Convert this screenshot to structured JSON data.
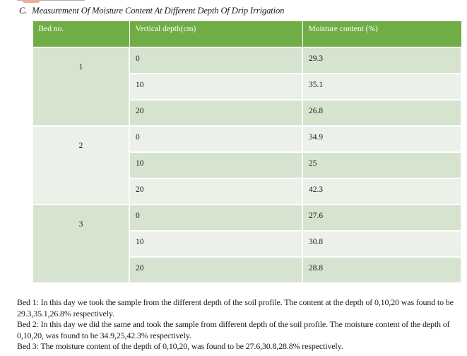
{
  "caption": {
    "number": "C.",
    "title": "Measurement Of Moisture Content At Different Depth Of Drip Irrigation"
  },
  "table": {
    "headers": [
      "Bed no.",
      "Vertical depth(cm)",
      "Moisture content (%)"
    ],
    "beds": [
      {
        "bed": "1",
        "rows": [
          {
            "depth": "0",
            "moisture": "29.3"
          },
          {
            "depth": "10",
            "moisture": "35.1"
          },
          {
            "depth": "20",
            "moisture": "26.8"
          }
        ]
      },
      {
        "bed": "2",
        "rows": [
          {
            "depth": "0",
            "moisture": "34.9"
          },
          {
            "depth": "10",
            "moisture": "25"
          },
          {
            "depth": "20",
            "moisture": "42.3"
          }
        ]
      },
      {
        "bed": "3",
        "rows": [
          {
            "depth": "0",
            "moisture": "27.6"
          },
          {
            "depth": "10",
            "moisture": "30.8"
          },
          {
            "depth": "20",
            "moisture": "28.8"
          }
        ]
      }
    ]
  },
  "notes": [
    "Bed 1: In this day we took the sample from the different depth of the soil profile. The content at the depth of 0,10,20 was found to be 29.3,35.1,26.8% respectively.",
    "Bed 2: In this day we did the same and took the sample from different depth of the soil profile. The moisture content of the depth of 0,10,20, was found to be 34.9,25,42.3% respectively.",
    "Bed 3: The moisture content of the depth of 0,10,20, was found to be 27.6,30.8,28.8% respectively."
  ],
  "colors": {
    "header_green": "#70ad47",
    "band_dark": "#d5e3cf",
    "band_light": "#ebf1e8"
  }
}
